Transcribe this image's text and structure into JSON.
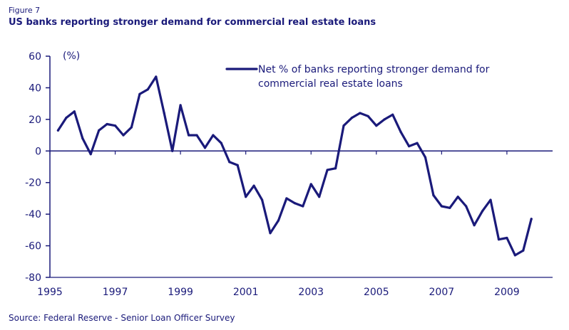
{
  "figure_label": "Figure 7",
  "title": "US banks reporting stronger demand for commercial real estate loans",
  "source": "Source: Federal Reserve - Senior Loan Officer Survey",
  "colors": {
    "series": "#1a1a7a",
    "text": "#1a1a7a"
  },
  "chart_data": {
    "type": "line",
    "title": "US banks reporting stronger demand for commercial real estate loans",
    "xlabel": "",
    "ylabel": "(%)",
    "xlim": [
      1995,
      2010.4
    ],
    "ylim": [
      -80,
      60
    ],
    "x_ticks": [
      1995,
      1997,
      1999,
      2001,
      2003,
      2005,
      2007,
      2009
    ],
    "y_ticks": [
      60,
      40,
      20,
      0,
      -20,
      -40,
      -60,
      -80
    ],
    "legend_position": "top-right",
    "series": [
      {
        "name": "Net % of banks reporting stronger demand for commercial real estate loans",
        "legend_lines": [
          "Net % of banks reporting stronger demand for",
          "commercial real estate loans"
        ],
        "x": [
          1995.25,
          1995.5,
          1995.75,
          1996.0,
          1996.25,
          1996.5,
          1996.75,
          1997.0,
          1997.25,
          1997.5,
          1997.75,
          1998.0,
          1998.25,
          1998.5,
          1998.75,
          1999.0,
          1999.25,
          1999.5,
          1999.75,
          2000.0,
          2000.25,
          2000.5,
          2000.75,
          2001.0,
          2001.25,
          2001.5,
          2001.75,
          2002.0,
          2002.25,
          2002.5,
          2002.75,
          2003.0,
          2003.25,
          2003.5,
          2003.75,
          2004.0,
          2004.25,
          2004.5,
          2004.75,
          2005.0,
          2005.25,
          2005.5,
          2005.75,
          2006.0,
          2006.25,
          2006.5,
          2006.75,
          2007.0,
          2007.25,
          2007.5,
          2007.75,
          2008.0,
          2008.25,
          2008.5,
          2008.75,
          2009.0,
          2009.25,
          2009.5,
          2009.75
        ],
        "values": [
          13,
          21,
          25,
          8,
          -2,
          13,
          17,
          16,
          10,
          15,
          36,
          39,
          47,
          24,
          0,
          29,
          10,
          10,
          2,
          10,
          5,
          -7,
          -9,
          -29,
          -22,
          -31,
          -52,
          -44,
          -30,
          -33,
          -35,
          -21,
          -29,
          -12,
          -11,
          16,
          21,
          24,
          22,
          16,
          20,
          23,
          12,
          3,
          5,
          -4,
          -28,
          -35,
          -36,
          -29,
          -35,
          -47,
          -38,
          -31,
          -56,
          -55,
          -66,
          -63,
          -43
        ]
      }
    ]
  }
}
